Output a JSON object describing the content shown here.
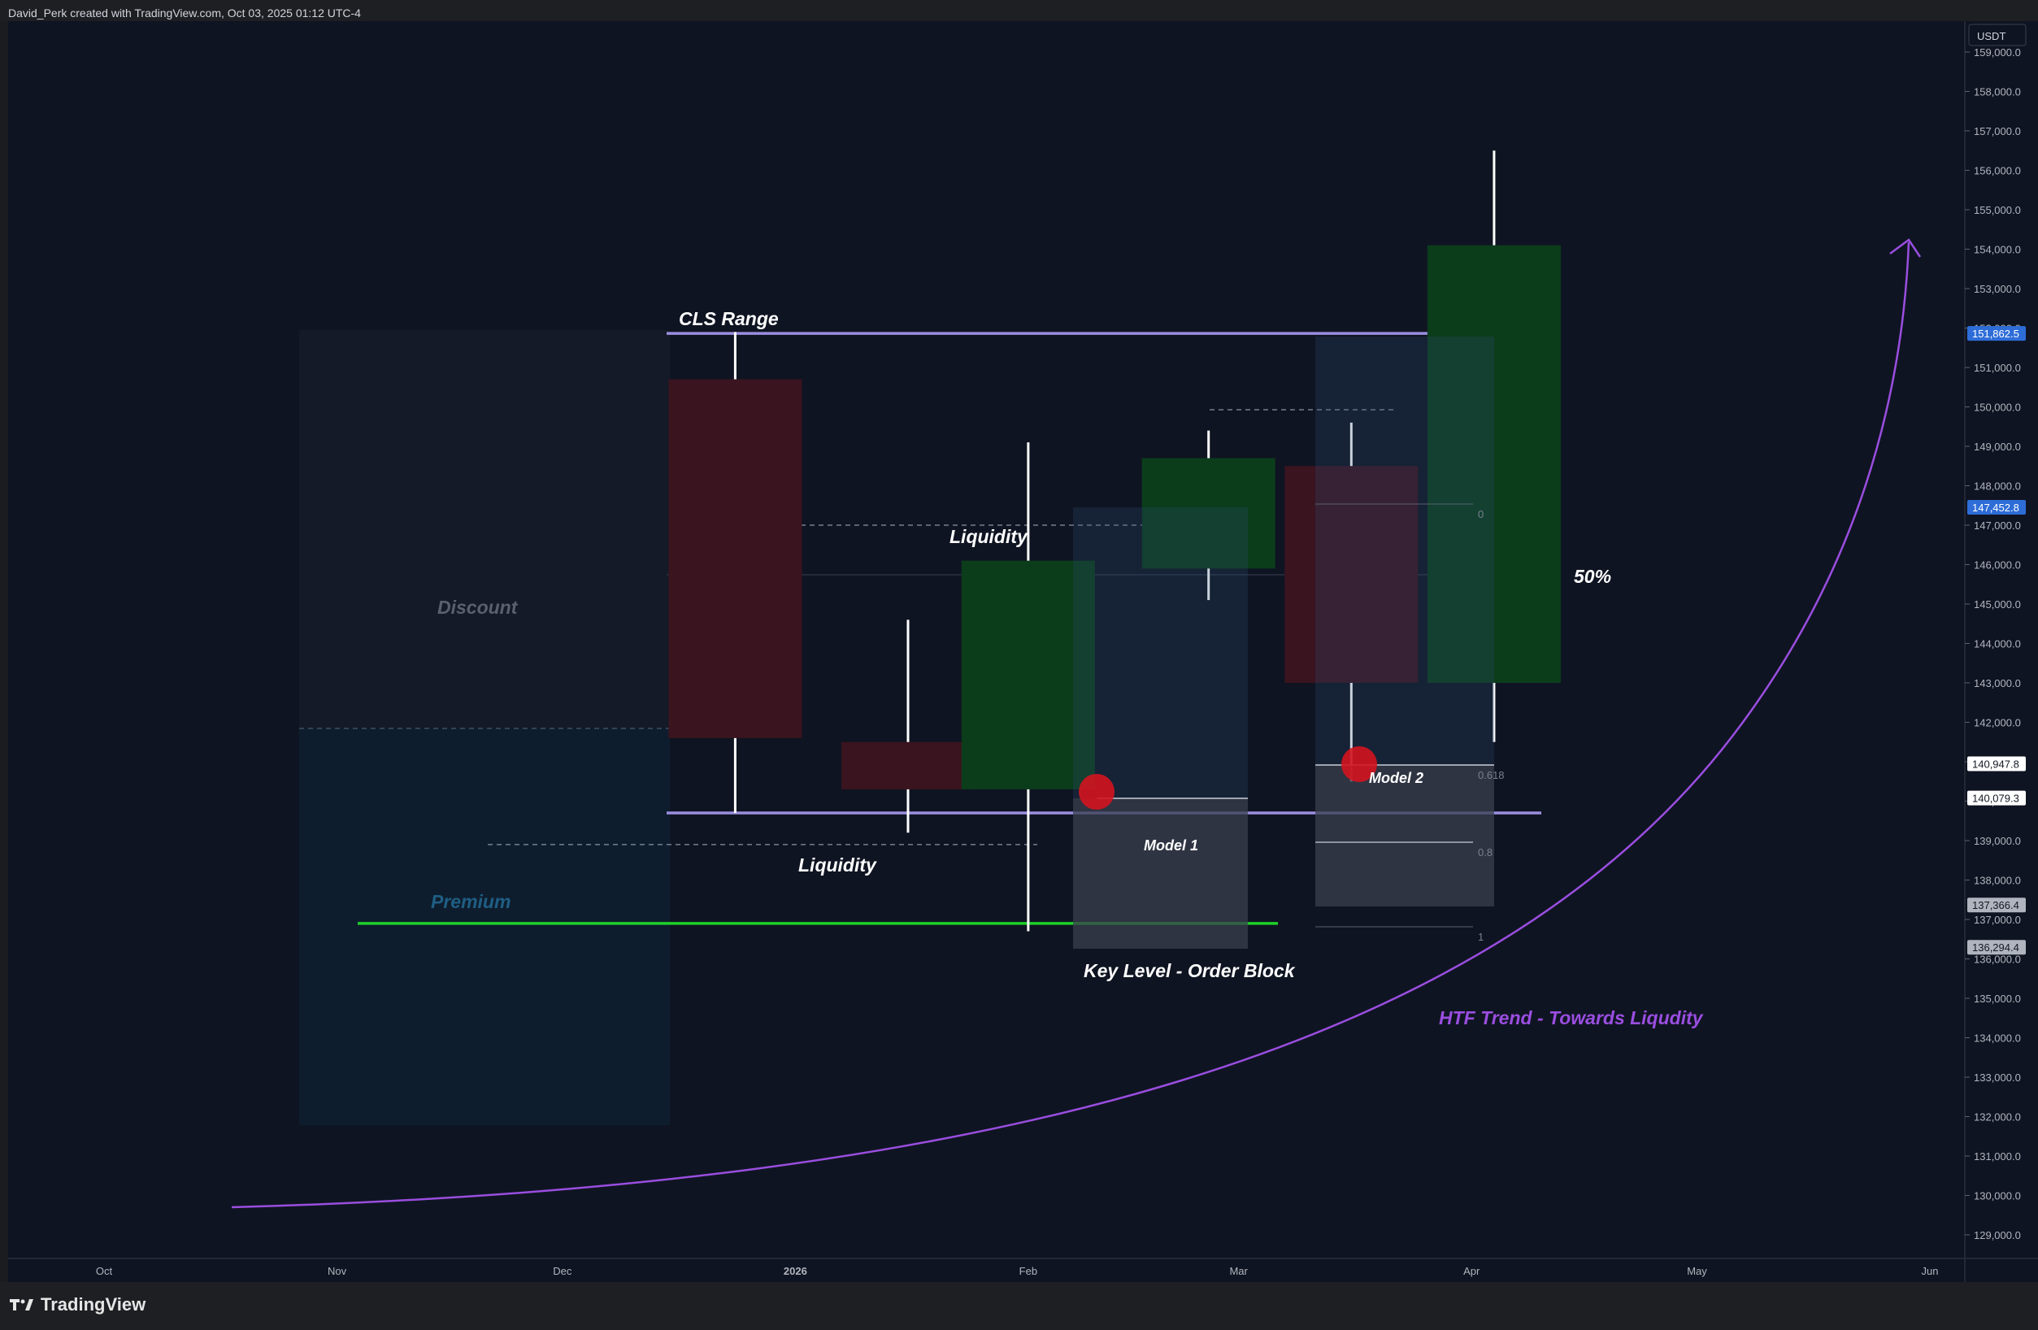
{
  "header": {
    "text": "David_Perk created with TradingView.com, Oct 03, 2025 01:12 UTC-4"
  },
  "footer": {
    "brand": "TradingView"
  },
  "colors": {
    "bg": "#0f1422",
    "up": "#0b3d1b",
    "down": "#3a141f",
    "wick": "#ffffff",
    "range_line": "#9b8ee0",
    "key_level": "#1fd12a",
    "trend": "#9a4ee0",
    "marker": "#d3141f",
    "price_tag_blue": "#2e6dd8"
  },
  "chart_data": {
    "type": "candlestick",
    "currency_label": "USDT",
    "y_ticks": [
      "159,000.0",
      "158,000.0",
      "157,000.0",
      "156,000.0",
      "155,000.0",
      "154,000.0",
      "153,000.0",
      "152,000.0",
      "151,000.0",
      "150,000.0",
      "149,000.0",
      "148,000.0",
      "147,000.0",
      "146,000.0",
      "145,000.0",
      "144,000.0",
      "143,000.0",
      "142,000.0",
      "141,000.0",
      "140,000.0",
      "139,000.0",
      "138,000.0",
      "137,000.0",
      "136,000.0",
      "135,000.0",
      "134,000.0",
      "133,000.0",
      "132,000.0",
      "131,000.0",
      "130,000.0",
      "129,000.0"
    ],
    "x_ticks": [
      {
        "label": "Oct",
        "date": "2025-10-01"
      },
      {
        "label": "Nov",
        "date": "2025-11-01"
      },
      {
        "label": "Dec",
        "date": "2025-12-01"
      },
      {
        "label": "2026",
        "date": "2026-01-01"
      },
      {
        "label": "Feb",
        "date": "2026-02-01"
      },
      {
        "label": "Mar",
        "date": "2026-03-01"
      },
      {
        "label": "Apr",
        "date": "2026-04-01"
      },
      {
        "label": "May",
        "date": "2026-05-01"
      },
      {
        "label": "Jun",
        "date": "2026-06-01"
      }
    ],
    "candles": [
      {
        "date": "2025-12-24",
        "open": 150700,
        "high": 151900,
        "low": 139700,
        "close": 141600
      },
      {
        "date": "2026-01-16",
        "open": 141500,
        "high": 144600,
        "low": 139200,
        "close": 140300
      },
      {
        "date": "2026-02-01",
        "open": 140300,
        "high": 149100,
        "low": 136700,
        "close": 146100
      },
      {
        "date": "2026-02-25",
        "open": 145900,
        "high": 149400,
        "low": 145100,
        "close": 148700
      },
      {
        "date": "2026-03-16",
        "open": 148500,
        "high": 149600,
        "low": 140500,
        "close": 143000
      },
      {
        "date": "2026-04-04",
        "open": 143000,
        "high": 156500,
        "low": 141500,
        "close": 154100
      }
    ],
    "price_tags": [
      {
        "label": "151,862.5",
        "value": 151862.5,
        "style": "blue"
      },
      {
        "label": "147,452.8",
        "value": 147452.8,
        "style": "blue"
      },
      {
        "label": "140,947.8",
        "value": 140947.8,
        "style": "white"
      },
      {
        "label": "140,079.3",
        "value": 140079.3,
        "style": "white"
      },
      {
        "label": "137,366.4",
        "value": 137366.4,
        "style": "grey"
      },
      {
        "label": "136,294.4",
        "value": 136294.4,
        "style": "grey"
      }
    ],
    "annotations": {
      "cls_range": "CLS Range",
      "liquidity_top": "Liquidity",
      "liquidity_bottom": "Liquidity",
      "discount": "Discount",
      "premium": "Premium",
      "model1": "Model 1",
      "model2": "Model 2",
      "key_level": "Key Level - Order Block",
      "fifty": "50%",
      "trend": "HTF Trend - Towards Liqudity",
      "fib_0": "0",
      "fib_0618": "0.618",
      "fib_08": "0.8",
      "fib_1": "1"
    },
    "levels": {
      "cls_high": 151862.5,
      "cls_low": 139700,
      "liq_top": 147000,
      "liq_bottom": 138900,
      "key_level": 136900
    }
  }
}
